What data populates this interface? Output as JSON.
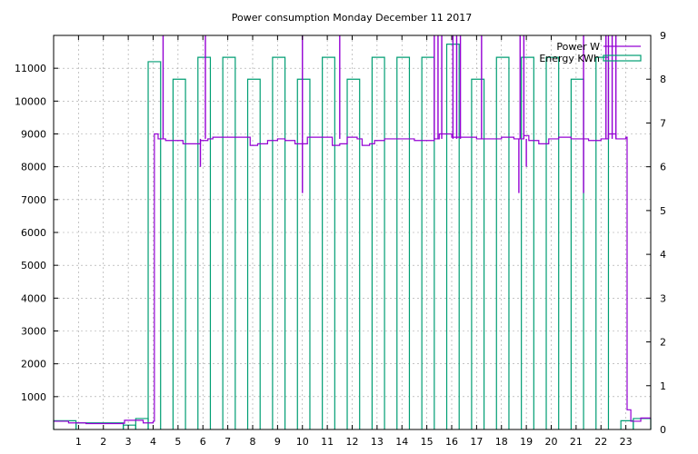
{
  "chart_data": {
    "type": "line",
    "title": "Power consumption Monday December 11 2017",
    "grid": true,
    "legend_position": "top-right",
    "x_axis": {
      "range": [
        0,
        24
      ],
      "ticks": [
        1,
        2,
        3,
        4,
        5,
        6,
        7,
        8,
        9,
        10,
        11,
        12,
        13,
        14,
        15,
        16,
        17,
        18,
        19,
        20,
        21,
        22,
        23
      ]
    },
    "y_axis_left": {
      "range": [
        0,
        12000
      ],
      "ticks": [
        1000,
        2000,
        3000,
        4000,
        5000,
        6000,
        7000,
        8000,
        9000,
        10000,
        11000
      ]
    },
    "y_axis_right": {
      "range": [
        0,
        9
      ],
      "ticks": [
        0,
        1,
        2,
        3,
        4,
        5,
        6,
        7,
        8,
        9
      ]
    },
    "series": [
      {
        "name": "Power W",
        "axis": "left",
        "color": "#9400d3",
        "step_points": [
          [
            0,
            250
          ],
          [
            0.6,
            200
          ],
          [
            1.3,
            180
          ],
          [
            2.8,
            190
          ],
          [
            2.85,
            280
          ],
          [
            3.5,
            280
          ],
          [
            3.6,
            200
          ],
          [
            4.0,
            250
          ],
          [
            4.05,
            9000
          ],
          [
            4.2,
            8850
          ],
          [
            4.5,
            8800
          ],
          [
            5.2,
            8700
          ],
          [
            5.9,
            8800
          ],
          [
            6.2,
            8850
          ],
          [
            6.4,
            8900
          ],
          [
            6.8,
            8900
          ],
          [
            7.5,
            8900
          ],
          [
            7.9,
            8650
          ],
          [
            8.2,
            8700
          ],
          [
            8.6,
            8800
          ],
          [
            9.0,
            8850
          ],
          [
            9.3,
            8800
          ],
          [
            9.7,
            8700
          ],
          [
            10.0,
            8700
          ],
          [
            10.2,
            8900
          ],
          [
            11.0,
            8900
          ],
          [
            11.2,
            8650
          ],
          [
            11.5,
            8700
          ],
          [
            11.8,
            8900
          ],
          [
            12.2,
            8850
          ],
          [
            12.4,
            8650
          ],
          [
            12.7,
            8700
          ],
          [
            12.9,
            8800
          ],
          [
            13.3,
            8850
          ],
          [
            14.0,
            8850
          ],
          [
            14.5,
            8800
          ],
          [
            15.3,
            8850
          ],
          [
            15.5,
            9000
          ],
          [
            16.0,
            8900
          ],
          [
            16.5,
            8900
          ],
          [
            17.0,
            8850
          ],
          [
            17.5,
            8850
          ],
          [
            18.0,
            8900
          ],
          [
            18.5,
            8850
          ],
          [
            18.9,
            8950
          ],
          [
            19.1,
            8800
          ],
          [
            19.5,
            8700
          ],
          [
            19.9,
            8850
          ],
          [
            20.3,
            8900
          ],
          [
            20.8,
            8850
          ],
          [
            21.1,
            8850
          ],
          [
            21.5,
            8800
          ],
          [
            22.0,
            8850
          ],
          [
            22.3,
            9000
          ],
          [
            22.6,
            8850
          ],
          [
            23.0,
            8900
          ],
          [
            23.05,
            600
          ],
          [
            23.2,
            250
          ],
          [
            23.6,
            350
          ],
          [
            24,
            350
          ]
        ],
        "spikes": [
          [
            4.4,
            12000
          ],
          [
            5.9,
            8000
          ],
          [
            6.1,
            12000
          ],
          [
            10.0,
            7200
          ],
          [
            10.0,
            12000
          ],
          [
            11.5,
            12000
          ],
          [
            15.3,
            12000
          ],
          [
            15.45,
            12000
          ],
          [
            15.6,
            12000
          ],
          [
            16.05,
            12000
          ],
          [
            16.2,
            12000
          ],
          [
            16.35,
            12000
          ],
          [
            17.2,
            12000
          ],
          [
            18.7,
            7200
          ],
          [
            18.75,
            12000
          ],
          [
            18.9,
            12000
          ],
          [
            19.0,
            8000
          ],
          [
            21.3,
            7200
          ],
          [
            21.3,
            12000
          ],
          [
            22.2,
            12000
          ],
          [
            22.3,
            12000
          ],
          [
            22.45,
            12000
          ],
          [
            22.6,
            12000
          ]
        ]
      },
      {
        "name": "Energy KWh",
        "axis": "right",
        "color": "#009e73",
        "bars": [
          {
            "start": 0.0,
            "end": 0.9,
            "value": 0.2
          },
          {
            "start": 0.9,
            "end": 2.8,
            "value": 0.15
          },
          {
            "start": 2.8,
            "end": 3.3,
            "value": 0.1
          },
          {
            "start": 3.3,
            "end": 3.8,
            "value": 0.25
          },
          {
            "start": 3.8,
            "end": 4.3,
            "value": 8.4
          },
          {
            "start": 4.8,
            "end": 5.3,
            "value": 8.0
          },
          {
            "start": 5.8,
            "end": 6.3,
            "value": 8.5
          },
          {
            "start": 6.8,
            "end": 7.3,
            "value": 8.5
          },
          {
            "start": 7.8,
            "end": 8.3,
            "value": 8.0
          },
          {
            "start": 8.8,
            "end": 9.3,
            "value": 8.5
          },
          {
            "start": 9.8,
            "end": 10.3,
            "value": 8.0
          },
          {
            "start": 10.8,
            "end": 11.3,
            "value": 8.5
          },
          {
            "start": 11.8,
            "end": 12.3,
            "value": 8.0
          },
          {
            "start": 12.8,
            "end": 13.3,
            "value": 8.5
          },
          {
            "start": 13.8,
            "end": 14.3,
            "value": 8.5
          },
          {
            "start": 14.8,
            "end": 15.3,
            "value": 8.5
          },
          {
            "start": 15.8,
            "end": 16.3,
            "value": 8.8
          },
          {
            "start": 16.8,
            "end": 17.3,
            "value": 8.0
          },
          {
            "start": 17.8,
            "end": 18.3,
            "value": 8.5
          },
          {
            "start": 18.8,
            "end": 19.3,
            "value": 8.5
          },
          {
            "start": 19.8,
            "end": 20.3,
            "value": 8.5
          },
          {
            "start": 20.8,
            "end": 21.3,
            "value": 8.0
          },
          {
            "start": 21.8,
            "end": 22.3,
            "value": 8.5
          },
          {
            "start": 22.8,
            "end": 23.3,
            "value": 0.2
          },
          {
            "start": 23.3,
            "end": 24.0,
            "value": 0.25
          }
        ]
      }
    ]
  }
}
